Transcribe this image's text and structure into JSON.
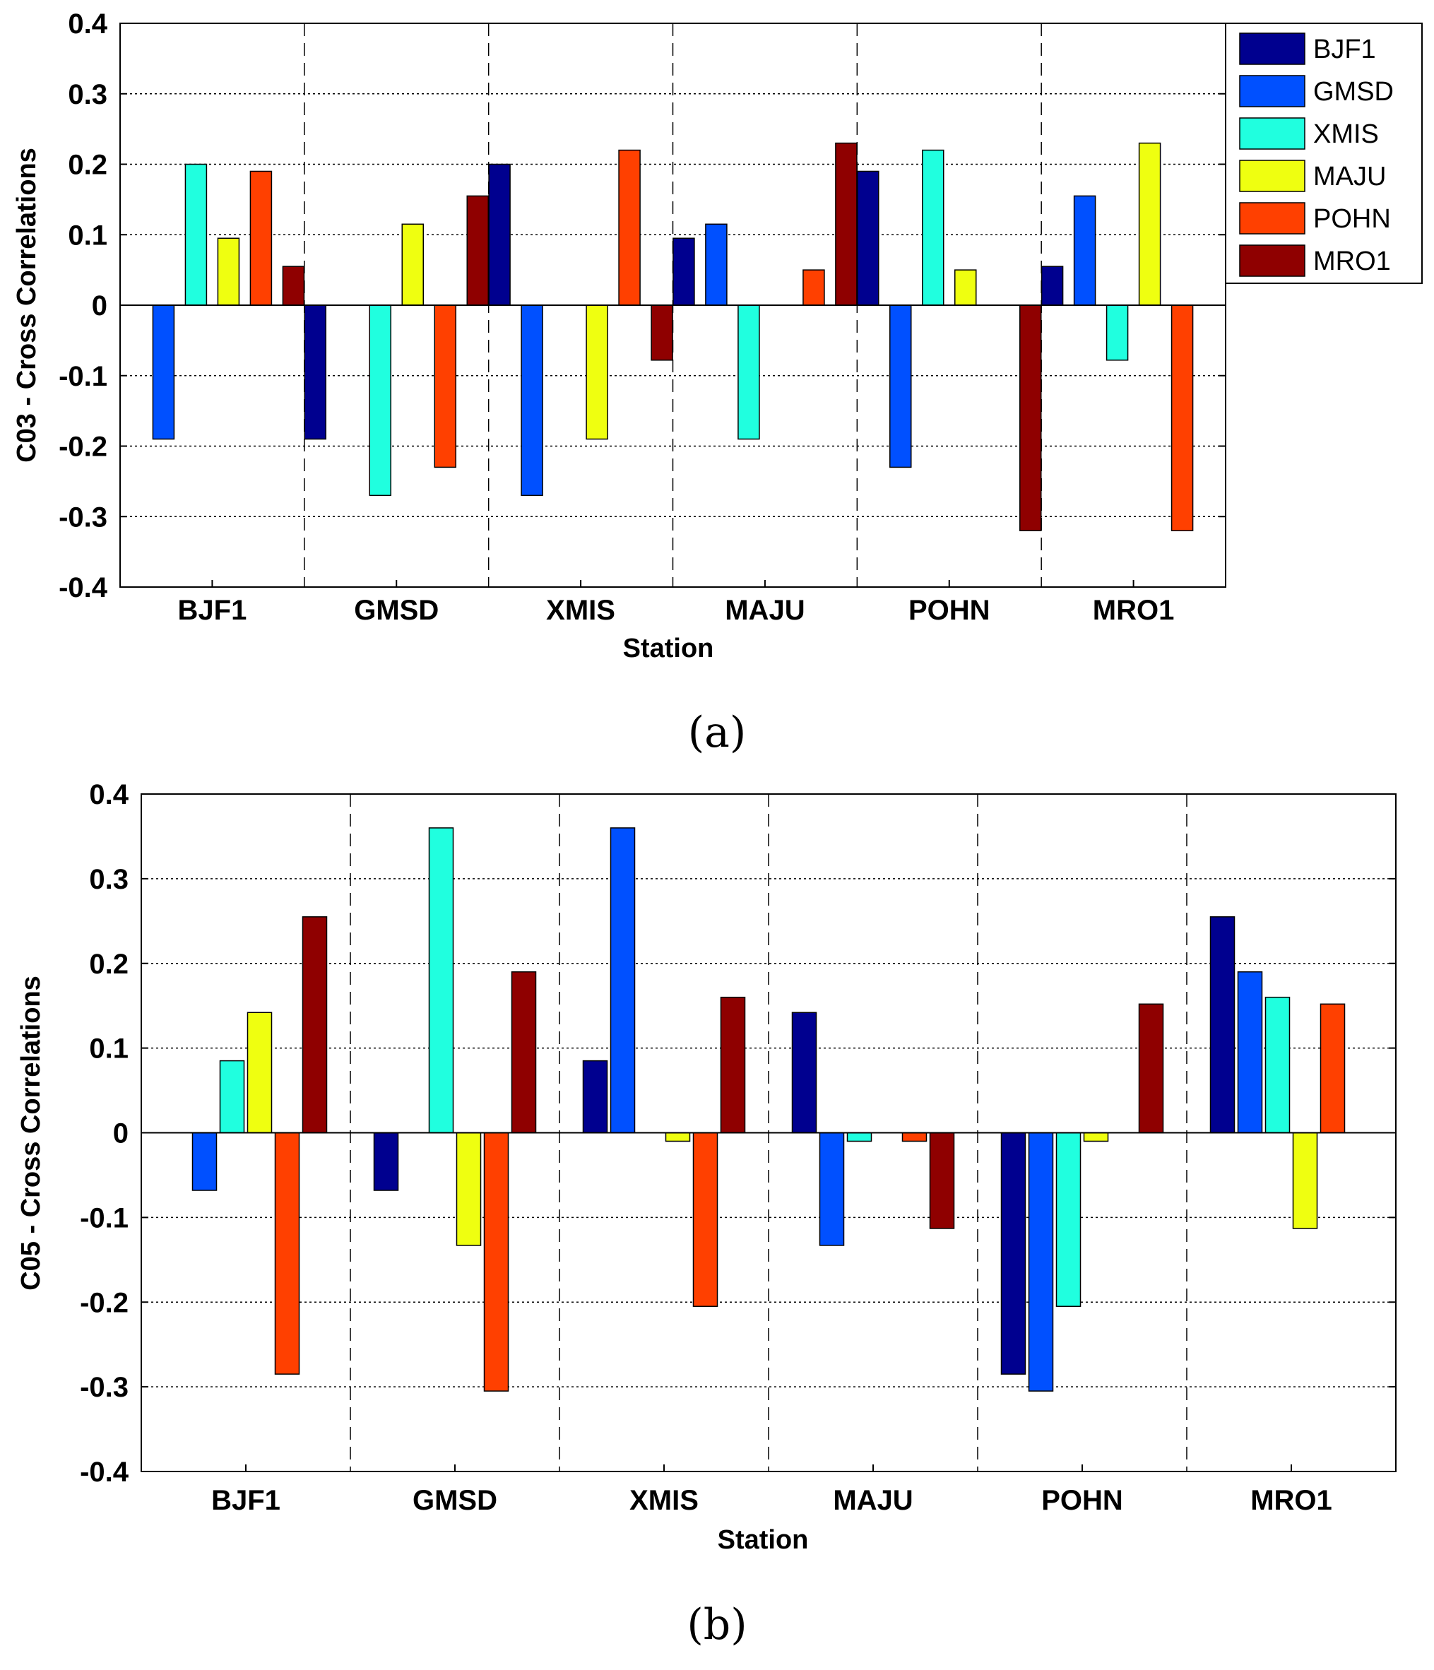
{
  "chart_data": [
    {
      "type": "bar",
      "caption": "(a)",
      "categories": [
        "BJF1",
        "GMSD",
        "XMIS",
        "MAJU",
        "POHN",
        "MRO1"
      ],
      "xlabel": "Station",
      "ylabel": "C03 - Cross Correlations",
      "ylim": [
        -0.4,
        0.4
      ],
      "yticks": [
        0.4,
        0.3,
        0.2,
        0.1,
        0,
        -0.1,
        -0.2,
        -0.3,
        -0.4
      ],
      "ytick_labels": [
        "0.4",
        "0.3",
        "0.2",
        "0.1",
        "0",
        "-0.1",
        "-0.2",
        "-0.3",
        "-0.4"
      ],
      "grid": "horizontal dotted",
      "legend_position": "top-right",
      "series": [
        {
          "name": "BJF1",
          "color": "#00008f",
          "values": [
            null,
            -0.19,
            0.2,
            0.095,
            0.19,
            0.055
          ]
        },
        {
          "name": "GMSD",
          "color": "#0050ff",
          "values": [
            -0.19,
            null,
            -0.27,
            0.115,
            -0.23,
            0.155
          ]
        },
        {
          "name": "XMIS",
          "color": "#20ffdf",
          "values": [
            0.2,
            -0.27,
            null,
            -0.19,
            0.22,
            -0.078
          ]
        },
        {
          "name": "MAJU",
          "color": "#efff10",
          "values": [
            0.095,
            0.115,
            -0.19,
            null,
            0.05,
            0.23
          ]
        },
        {
          "name": "POHN",
          "color": "#ff4000",
          "values": [
            0.19,
            -0.23,
            0.22,
            0.05,
            null,
            -0.32
          ]
        },
        {
          "name": "MRO1",
          "color": "#8f0000",
          "values": [
            0.055,
            0.155,
            -0.078,
            0.23,
            -0.32,
            null
          ]
        }
      ]
    },
    {
      "type": "bar",
      "caption": "(b)",
      "categories": [
        "BJF1",
        "GMSD",
        "XMIS",
        "MAJU",
        "POHN",
        "MRO1"
      ],
      "xlabel": "Station",
      "ylabel": "C05 - Cross Correlations",
      "ylim": [
        -0.4,
        0.4
      ],
      "yticks": [
        0.4,
        0.3,
        0.2,
        0.1,
        0,
        -0.1,
        -0.2,
        -0.3,
        -0.4
      ],
      "ytick_labels": [
        "0.4",
        "0.3",
        "0.2",
        "0.1",
        "0",
        "-0.1",
        "-0.2",
        "-0.3",
        "-0.4"
      ],
      "grid": "horizontal dotted",
      "series": [
        {
          "name": "BJF1",
          "color": "#00008f",
          "values": [
            null,
            -0.068,
            0.085,
            0.142,
            -0.285,
            0.255
          ]
        },
        {
          "name": "GMSD",
          "color": "#0050ff",
          "values": [
            -0.068,
            null,
            0.36,
            -0.133,
            -0.305,
            0.19
          ]
        },
        {
          "name": "XMIS",
          "color": "#20ffdf",
          "values": [
            0.085,
            0.36,
            null,
            -0.01,
            -0.205,
            0.16
          ]
        },
        {
          "name": "MAJU",
          "color": "#efff10",
          "values": [
            0.142,
            -0.133,
            -0.01,
            null,
            -0.01,
            -0.113
          ]
        },
        {
          "name": "POHN",
          "color": "#ff4000",
          "values": [
            -0.285,
            -0.305,
            -0.205,
            -0.01,
            null,
            0.152
          ]
        },
        {
          "name": "MRO1",
          "color": "#8f0000",
          "values": [
            0.255,
            0.19,
            0.16,
            -0.113,
            0.152,
            null
          ]
        }
      ]
    }
  ]
}
